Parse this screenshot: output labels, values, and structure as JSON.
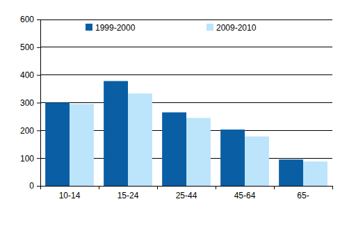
{
  "chart_data": {
    "type": "bar",
    "categories": [
      "10-14",
      "15-24",
      "25-44",
      "45-64",
      "65-"
    ],
    "series": [
      {
        "name": "1999-2000",
        "color": "#0a5ea4",
        "values": [
          300,
          378,
          265,
          203,
          95
        ]
      },
      {
        "name": "2009-2010",
        "color": "#bce4fa",
        "values": [
          295,
          333,
          245,
          178,
          88
        ]
      }
    ],
    "ylim": [
      0,
      600
    ],
    "yticks": [
      0,
      100,
      200,
      300,
      400,
      500,
      600
    ],
    "grid": true,
    "legend": "top"
  }
}
